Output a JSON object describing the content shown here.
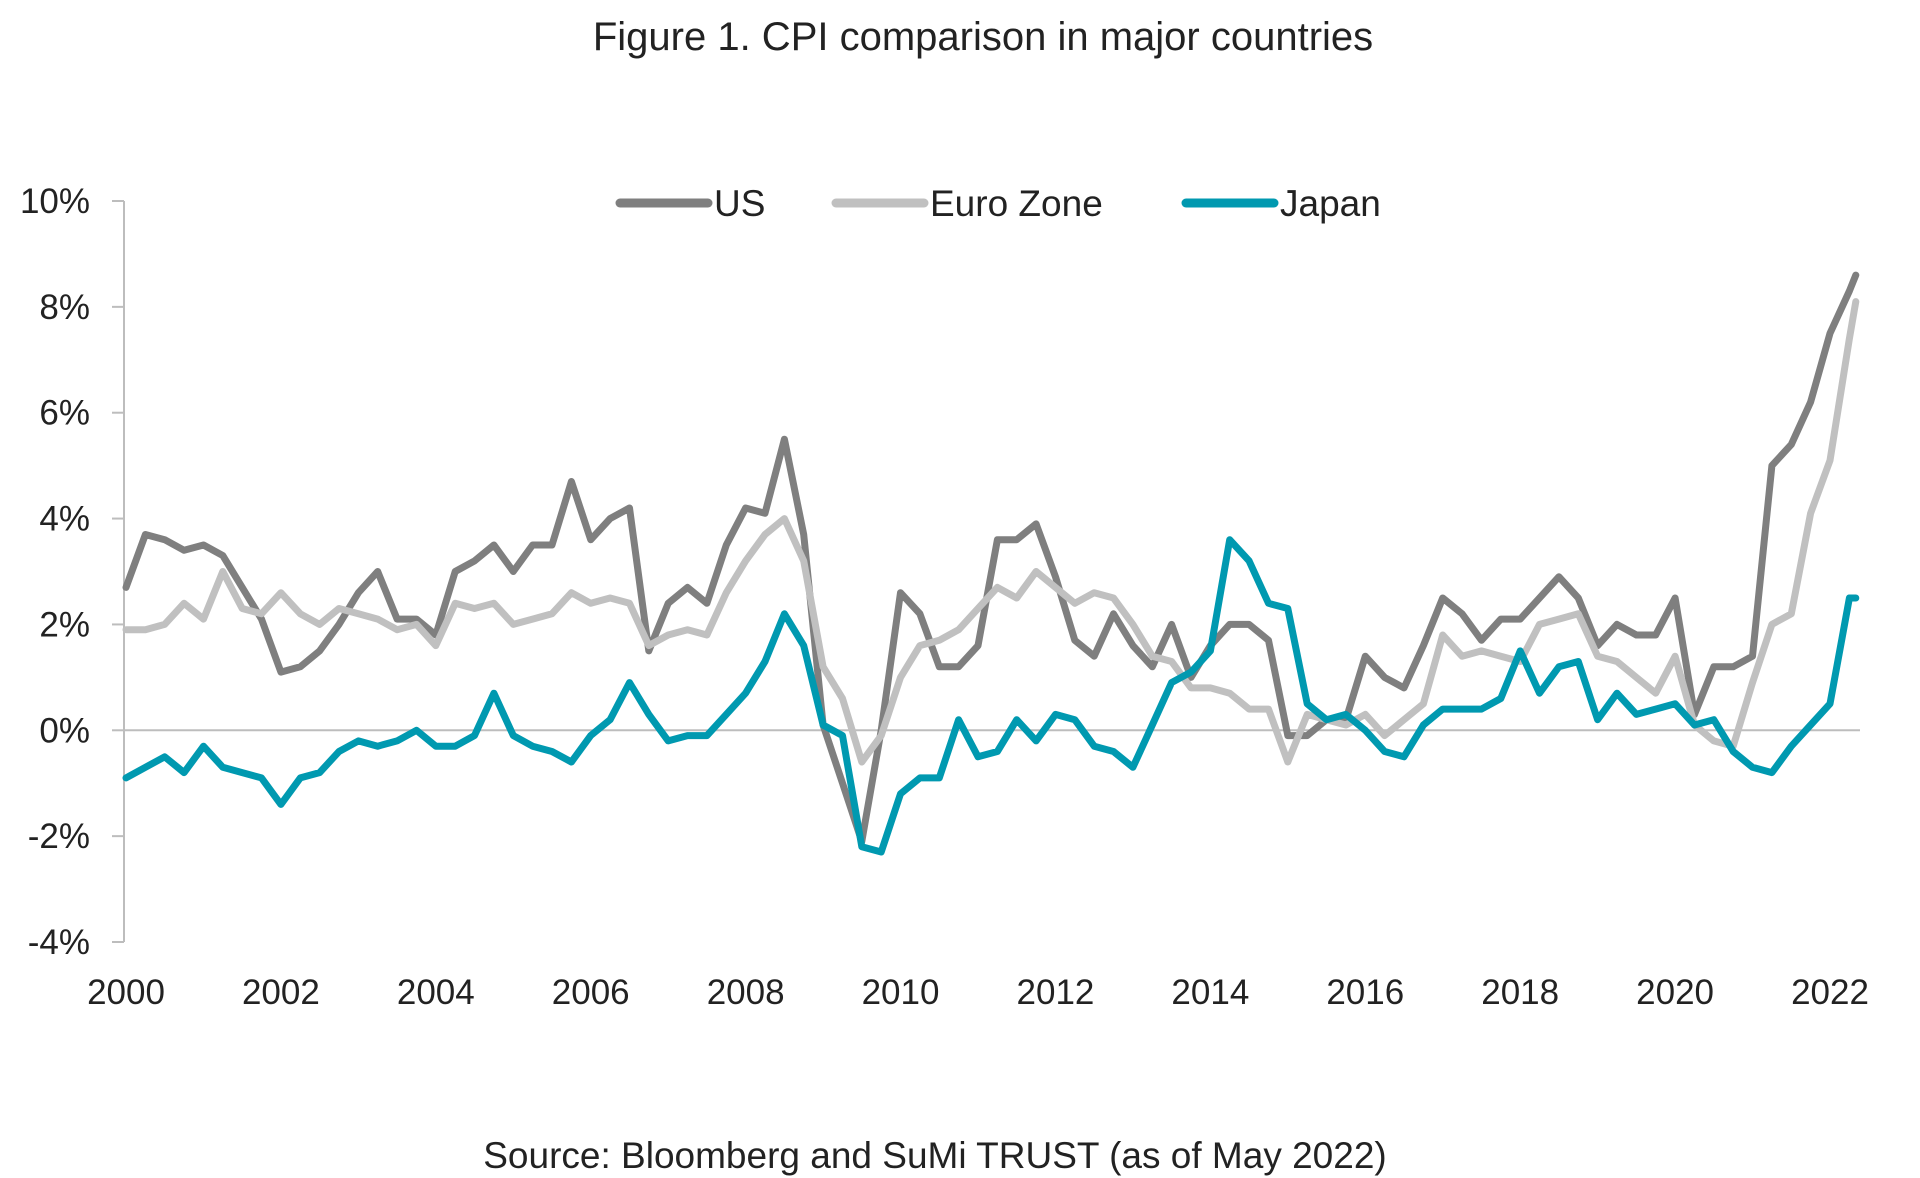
{
  "chart_data": {
    "type": "line",
    "title": "Figure 1. CPI comparison in major countries",
    "source": "Source: Bloomberg and SuMi TRUST (as of May 2022)",
    "xlabel": "",
    "ylabel": "",
    "xlim": [
      2000,
      2022.4
    ],
    "ylim": [
      -4,
      10
    ],
    "x_ticks": [
      "2000",
      "2002",
      "2004",
      "2006",
      "2008",
      "2010",
      "2012",
      "2014",
      "2016",
      "2018",
      "2020",
      "2022"
    ],
    "y_ticks": [
      "10%",
      "8%",
      "6%",
      "4%",
      "2%",
      "0%",
      "-2%",
      "-4%"
    ],
    "y_tick_values": [
      10,
      8,
      6,
      4,
      2,
      0,
      -2,
      -4
    ],
    "grid": false,
    "zero_line": true,
    "legend_position": "top-center",
    "dates": [
      "2000-01",
      "2000-04",
      "2000-07",
      "2000-10",
      "2001-01",
      "2001-04",
      "2001-07",
      "2001-10",
      "2002-01",
      "2002-04",
      "2002-07",
      "2002-10",
      "2003-01",
      "2003-04",
      "2003-07",
      "2003-10",
      "2004-01",
      "2004-04",
      "2004-07",
      "2004-10",
      "2005-01",
      "2005-04",
      "2005-07",
      "2005-10",
      "2006-01",
      "2006-04",
      "2006-07",
      "2006-10",
      "2007-01",
      "2007-04",
      "2007-07",
      "2007-10",
      "2008-01",
      "2008-04",
      "2008-07",
      "2008-10",
      "2009-01",
      "2009-04",
      "2009-07",
      "2009-10",
      "2010-01",
      "2010-04",
      "2010-07",
      "2010-10",
      "2011-01",
      "2011-04",
      "2011-07",
      "2011-10",
      "2012-01",
      "2012-04",
      "2012-07",
      "2012-10",
      "2013-01",
      "2013-04",
      "2013-07",
      "2013-10",
      "2014-01",
      "2014-04",
      "2014-07",
      "2014-10",
      "2015-01",
      "2015-04",
      "2015-07",
      "2015-10",
      "2016-01",
      "2016-04",
      "2016-07",
      "2016-10",
      "2017-01",
      "2017-04",
      "2017-07",
      "2017-10",
      "2018-01",
      "2018-04",
      "2018-07",
      "2018-10",
      "2019-01",
      "2019-04",
      "2019-07",
      "2019-10",
      "2020-01",
      "2020-04",
      "2020-07",
      "2020-10",
      "2021-01",
      "2021-04",
      "2021-07",
      "2021-10",
      "2022-01",
      "2022-04",
      "2022-05"
    ],
    "series": [
      {
        "name": "US",
        "color": "#7f7f7f",
        "values": [
          2.7,
          3.7,
          3.6,
          3.4,
          3.5,
          3.3,
          2.7,
          2.1,
          1.1,
          1.2,
          1.5,
          2.0,
          2.6,
          3.0,
          2.1,
          2.1,
          1.8,
          3.0,
          3.2,
          3.5,
          3.0,
          3.5,
          3.5,
          4.7,
          3.6,
          4.0,
          4.2,
          1.5,
          2.4,
          2.7,
          2.4,
          3.5,
          4.2,
          4.1,
          5.5,
          3.7,
          0.1,
          -1.0,
          -2.1,
          0.0,
          2.6,
          2.2,
          1.2,
          1.2,
          1.6,
          3.6,
          3.6,
          3.9,
          2.9,
          1.7,
          1.4,
          2.2,
          1.6,
          1.2,
          2.0,
          1.0,
          1.6,
          2.0,
          2.0,
          1.7,
          -0.1,
          -0.1,
          0.2,
          0.2,
          1.4,
          1.0,
          0.8,
          1.6,
          2.5,
          2.2,
          1.7,
          2.1,
          2.1,
          2.5,
          2.9,
          2.5,
          1.6,
          2.0,
          1.8,
          1.8,
          2.5,
          0.3,
          1.2,
          1.2,
          1.4,
          5.0,
          5.4,
          6.2,
          7.5,
          8.3,
          8.6
        ]
      },
      {
        "name": "Euro Zone",
        "color": "#c0c0c0",
        "values": [
          1.9,
          1.9,
          2.0,
          2.4,
          2.1,
          3.0,
          2.3,
          2.2,
          2.6,
          2.2,
          2.0,
          2.3,
          2.2,
          2.1,
          1.9,
          2.0,
          1.6,
          2.4,
          2.3,
          2.4,
          2.0,
          2.1,
          2.2,
          2.6,
          2.4,
          2.5,
          2.4,
          1.6,
          1.8,
          1.9,
          1.8,
          2.6,
          3.2,
          3.7,
          4.0,
          3.2,
          1.2,
          0.6,
          -0.6,
          -0.1,
          1.0,
          1.6,
          1.7,
          1.9,
          2.3,
          2.7,
          2.5,
          3.0,
          2.7,
          2.4,
          2.6,
          2.5,
          2.0,
          1.4,
          1.3,
          0.8,
          0.8,
          0.7,
          0.4,
          0.4,
          -0.6,
          0.3,
          0.2,
          0.1,
          0.3,
          -0.1,
          0.2,
          0.5,
          1.8,
          1.4,
          1.5,
          1.4,
          1.3,
          2.0,
          2.1,
          2.2,
          1.4,
          1.3,
          1.0,
          0.7,
          1.4,
          0.1,
          -0.2,
          -0.3,
          0.9,
          2.0,
          2.2,
          4.1,
          5.1,
          7.4,
          8.1
        ]
      },
      {
        "name": "Japan",
        "color": "#0099b0",
        "values": [
          -0.9,
          -0.7,
          -0.5,
          -0.8,
          -0.3,
          -0.7,
          -0.8,
          -0.9,
          -1.4,
          -0.9,
          -0.8,
          -0.4,
          -0.2,
          -0.3,
          -0.2,
          0.0,
          -0.3,
          -0.3,
          -0.1,
          0.7,
          -0.1,
          -0.3,
          -0.4,
          -0.6,
          -0.1,
          0.2,
          0.9,
          0.3,
          -0.2,
          -0.1,
          -0.1,
          0.3,
          0.7,
          1.3,
          2.2,
          1.6,
          0.1,
          -0.1,
          -2.2,
          -2.3,
          -1.2,
          -0.9,
          -0.9,
          0.2,
          -0.5,
          -0.4,
          0.2,
          -0.2,
          0.3,
          0.2,
          -0.3,
          -0.4,
          -0.7,
          0.1,
          0.9,
          1.1,
          1.5,
          3.6,
          3.2,
          2.4,
          2.3,
          0.5,
          0.2,
          0.3,
          0.0,
          -0.4,
          -0.5,
          0.1,
          0.4,
          0.4,
          0.4,
          0.6,
          1.5,
          0.7,
          1.2,
          1.3,
          0.2,
          0.7,
          0.3,
          0.4,
          0.5,
          0.1,
          0.2,
          -0.4,
          -0.7,
          -0.8,
          -0.3,
          0.1,
          0.5,
          2.5,
          2.5
        ]
      }
    ]
  }
}
